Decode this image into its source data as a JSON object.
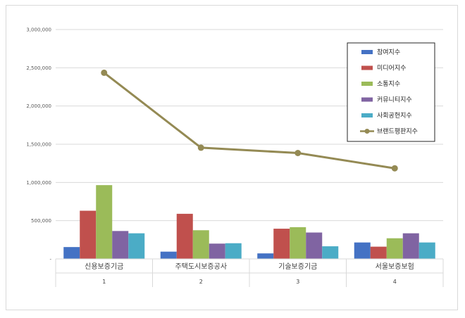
{
  "chart_data": {
    "type": "bar",
    "categories": [
      "신용보증기금",
      "주택도시보증공사",
      "기술보증기금",
      "서울보증보험"
    ],
    "category_index": [
      "1",
      "2",
      "3",
      "4"
    ],
    "ylim": [
      0,
      3000000
    ],
    "yticks": [
      "-",
      "500,000",
      "1,000,000",
      "1,500,000",
      "2,000,000",
      "2,500,000",
      "3,000,000"
    ],
    "grid": true,
    "legend_position": "top-right",
    "series": [
      {
        "name": "참여지수",
        "kind": "bar",
        "color": "#4472c4",
        "values": [
          155000,
          95000,
          72000,
          215000
        ]
      },
      {
        "name": "미디어지수",
        "kind": "bar",
        "color": "#c0504d",
        "values": [
          630000,
          590000,
          395000,
          160000
        ]
      },
      {
        "name": "소통지수",
        "kind": "bar",
        "color": "#9bbb59",
        "values": [
          965000,
          375000,
          415000,
          270000
        ]
      },
      {
        "name": "커뮤니티지수",
        "kind": "bar",
        "color": "#8064a2",
        "values": [
          365000,
          200000,
          345000,
          335000
        ]
      },
      {
        "name": "사회공헌지수",
        "kind": "bar",
        "color": "#4bacc6",
        "values": [
          335000,
          205000,
          165000,
          215000
        ]
      },
      {
        "name": "브랜드평판지수",
        "kind": "line",
        "color": "#948a54",
        "values": [
          2435000,
          1455000,
          1385000,
          1185000
        ]
      }
    ]
  }
}
